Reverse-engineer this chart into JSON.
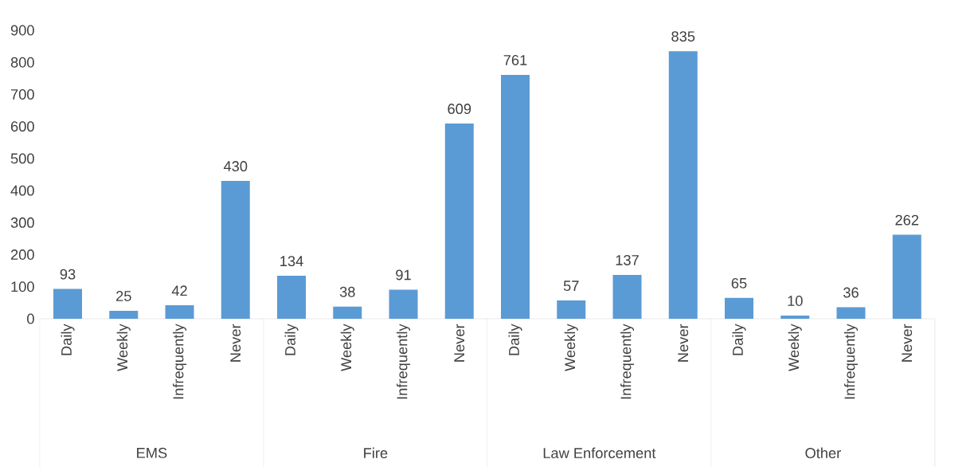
{
  "chart_data": [
    {
      "type": "bar",
      "xlabel": "EMS",
      "categories": [
        "Daily",
        "Weekly",
        "Infrequently",
        "Never"
      ],
      "values": [
        93,
        25,
        42,
        430
      ],
      "color": "#5b9bd5",
      "ylim": [
        0,
        900
      ],
      "yticks": [
        0,
        100,
        200,
        300,
        400,
        500,
        600,
        700,
        800,
        900
      ],
      "data_labels": true
    },
    {
      "type": "bar",
      "xlabel": "Fire",
      "categories": [
        "Daily",
        "Weekly",
        "Infrequently",
        "Never"
      ],
      "values": [
        134,
        38,
        91,
        609
      ],
      "color": "#5b9bd5",
      "ylim": [
        0,
        900
      ],
      "tick_labels": "x",
      "data_labels": true
    },
    {
      "type": "bar",
      "xlabel": "Law Enforcement",
      "categories": [
        "Daily",
        "Weekly",
        "Infrequently",
        "Never"
      ],
      "values": [
        761,
        57,
        137,
        835
      ],
      "color": "#5b9bd5",
      "ylim": [
        0,
        900
      ],
      "tick_labels": "x",
      "data_labels": true
    },
    {
      "type": "bar",
      "xlabel": "Other",
      "categories": [
        "Daily",
        "Weekly",
        "Infrequently",
        "Never"
      ],
      "values": [
        65,
        10,
        36,
        262
      ],
      "color": "#5b9bd5",
      "ylim": [
        0,
        900
      ],
      "tick_labels": "x",
      "data_labels": true
    }
  ]
}
